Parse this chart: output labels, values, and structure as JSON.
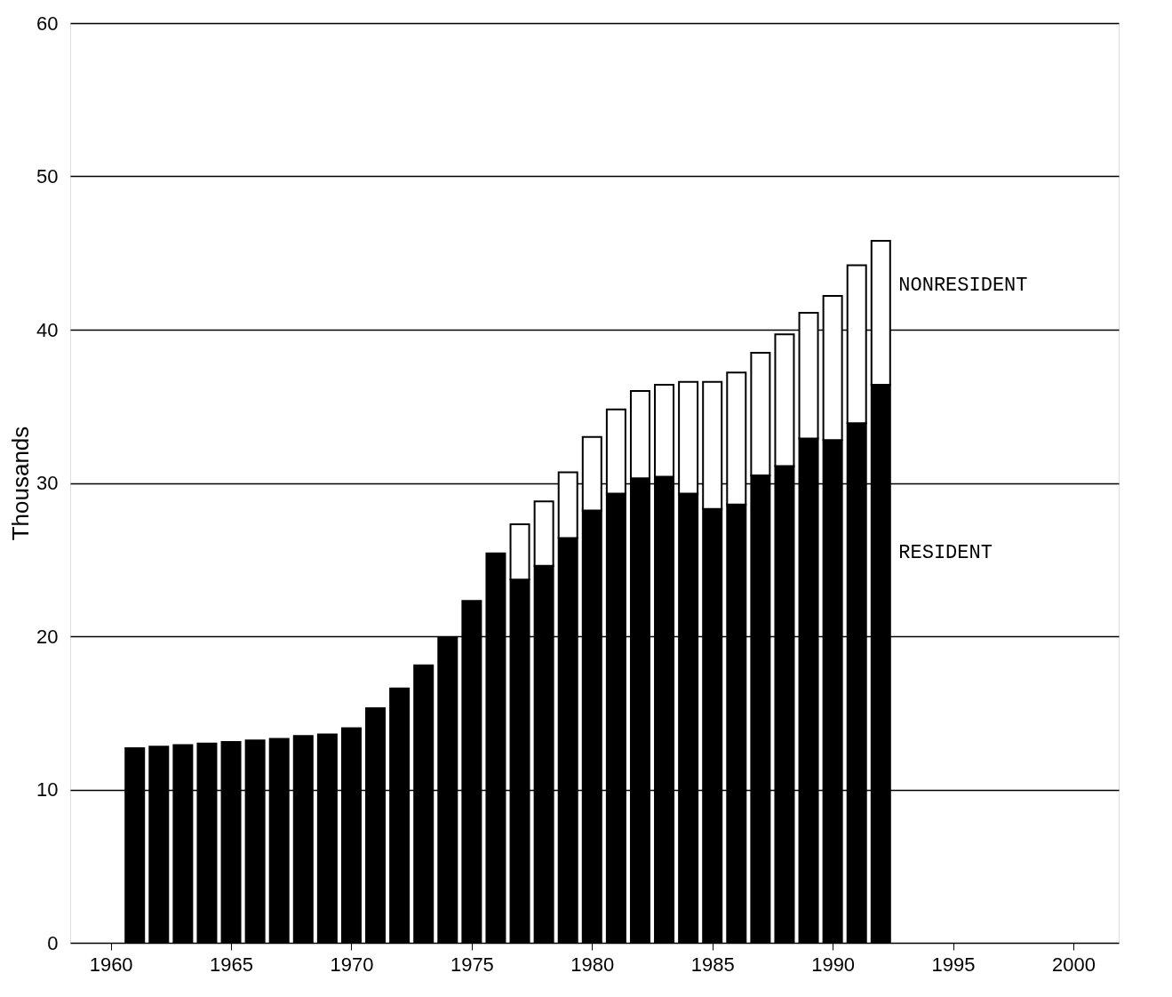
{
  "chart_data": {
    "type": "bar",
    "stacked": true,
    "ylabel": "Thousands",
    "x": [
      1961,
      1962,
      1963,
      1964,
      1965,
      1966,
      1967,
      1968,
      1969,
      1970,
      1971,
      1972,
      1973,
      1974,
      1975,
      1976,
      1977,
      1978,
      1979,
      1980,
      1981,
      1982,
      1983,
      1984,
      1985,
      1986,
      1987,
      1988,
      1989,
      1990,
      1991,
      1992
    ],
    "series": [
      {
        "name": "RESIDENT",
        "color": "#000000",
        "values": [
          12.7,
          12.8,
          12.9,
          13.0,
          13.1,
          13.2,
          13.3,
          13.5,
          13.6,
          14.0,
          15.3,
          16.6,
          18.1,
          19.9,
          22.3,
          25.4,
          23.7,
          24.6,
          26.4,
          28.2,
          29.3,
          30.3,
          30.4,
          29.3,
          28.3,
          28.6,
          30.5,
          31.1,
          32.9,
          32.8,
          33.9,
          36.4
        ]
      },
      {
        "name": "NONRESIDENT",
        "color": "#ffffff",
        "values": [
          null,
          null,
          null,
          null,
          null,
          null,
          null,
          null,
          null,
          null,
          null,
          null,
          null,
          null,
          null,
          null,
          3.6,
          4.2,
          4.3,
          4.8,
          5.5,
          5.7,
          6.0,
          7.3,
          8.3,
          8.6,
          8.0,
          8.6,
          8.2,
          9.4,
          10.3,
          9.4
        ]
      }
    ],
    "xlim": [
      1958.5,
      2001.7
    ],
    "xticks": [
      1960,
      1965,
      1970,
      1975,
      1980,
      1985,
      1990,
      1995,
      2000
    ],
    "ylim": [
      0,
      60
    ],
    "yticks": [
      0,
      10,
      20,
      30,
      40,
      50,
      60
    ],
    "grid": "y",
    "legend": false
  }
}
